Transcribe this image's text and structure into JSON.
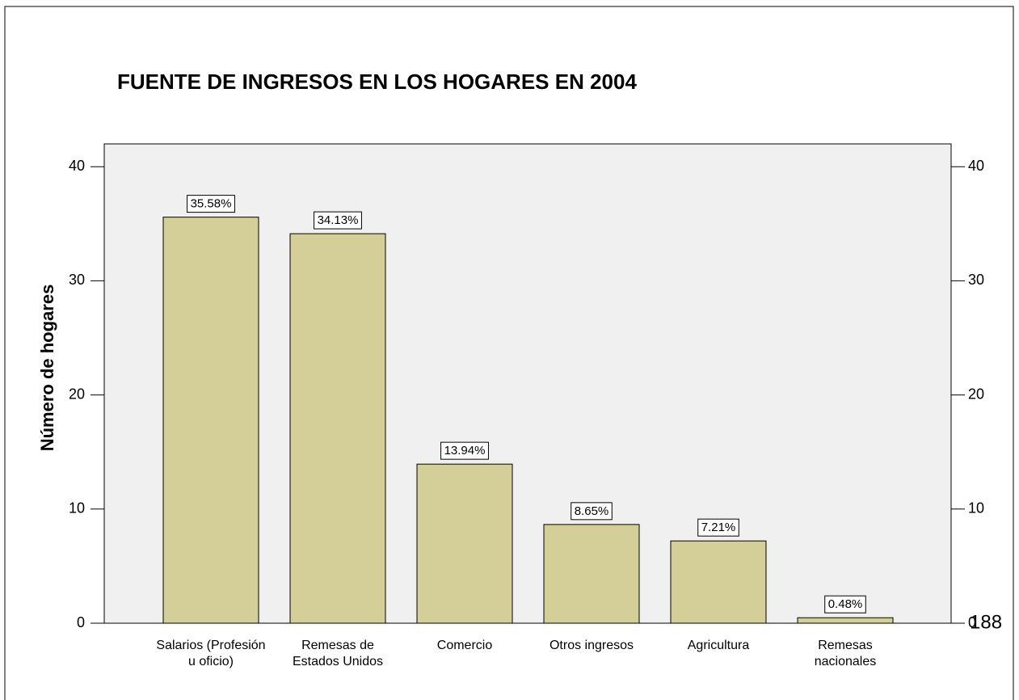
{
  "chart_data": {
    "type": "bar",
    "title": "FUENTE DE INGRESOS EN LOS HOGARES EN 2004",
    "y_label": "Número de hogares",
    "categories": [
      "Salarios (Profesión u oficio)",
      "Remesas de Estados Unidos",
      "Comercio",
      "Otros ingresos",
      "Agricultura",
      "Remesas nacionales"
    ],
    "values": [
      35.58,
      34.13,
      13.94,
      8.65,
      7.21,
      0.48
    ],
    "value_labels": [
      "35.58%",
      "34.13%",
      "13.94%",
      "8.65%",
      "7.21%",
      "0.48%"
    ],
    "color": "#d4cf98",
    "ylim": [
      0,
      42
    ],
    "yticks": [
      0,
      10,
      20,
      30,
      40
    ],
    "y2lim": [
      0,
      42
    ],
    "y2ticks": [
      0,
      10,
      20,
      30,
      40
    ],
    "grid": false,
    "page_number": "188"
  }
}
